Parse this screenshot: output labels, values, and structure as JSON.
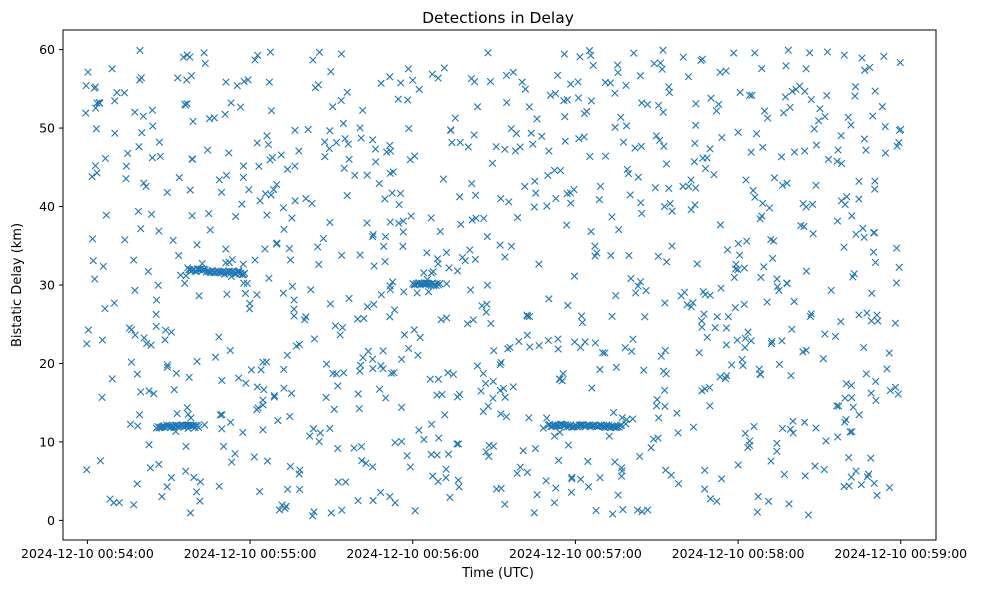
{
  "chart_data": {
    "type": "scatter",
    "title": "Detections in Delay",
    "xlabel": "Time (UTC)",
    "ylabel": "Bistatic Delay (km)",
    "marker": "x",
    "marker_color": "#1f77b4",
    "grid": false,
    "xlim": [
      "2024-12-10 00:53:51",
      "2024-12-10 00:59:13"
    ],
    "ylim": [
      -2.5,
      62.5
    ],
    "x_ticks": [
      "2024-12-10 00:54:00",
      "2024-12-10 00:55:00",
      "2024-12-10 00:56:00",
      "2024-12-10 00:57:00",
      "2024-12-10 00:58:00",
      "2024-12-10 00:59:00"
    ],
    "y_ticks": [
      "0",
      "10",
      "20",
      "30",
      "40",
      "50",
      "60"
    ],
    "tracks": [
      {
        "t_start": "2024-12-10 00:54:26",
        "t_end": "2024-12-10 00:54:41",
        "delay_start": 12.0,
        "delay_end": 12.0
      },
      {
        "t_start": "2024-12-10 00:54:37",
        "t_end": "2024-12-10 00:54:58",
        "delay_start": 32.0,
        "delay_end": 31.4
      },
      {
        "t_start": "2024-12-10 00:56:00",
        "t_end": "2024-12-10 00:56:10",
        "delay_start": 30.2,
        "delay_end": 30.0
      },
      {
        "t_start": "2024-12-10 00:56:50",
        "t_end": "2024-12-10 00:57:17",
        "delay_start": 12.1,
        "delay_end": 12.0
      }
    ],
    "scattered_detections": {
      "t_start": "2024-12-10 00:53:59",
      "t_end": "2024-12-10 00:59:00",
      "delay_range": [
        0.5,
        60.0
      ],
      "approx_count": 1000
    }
  }
}
